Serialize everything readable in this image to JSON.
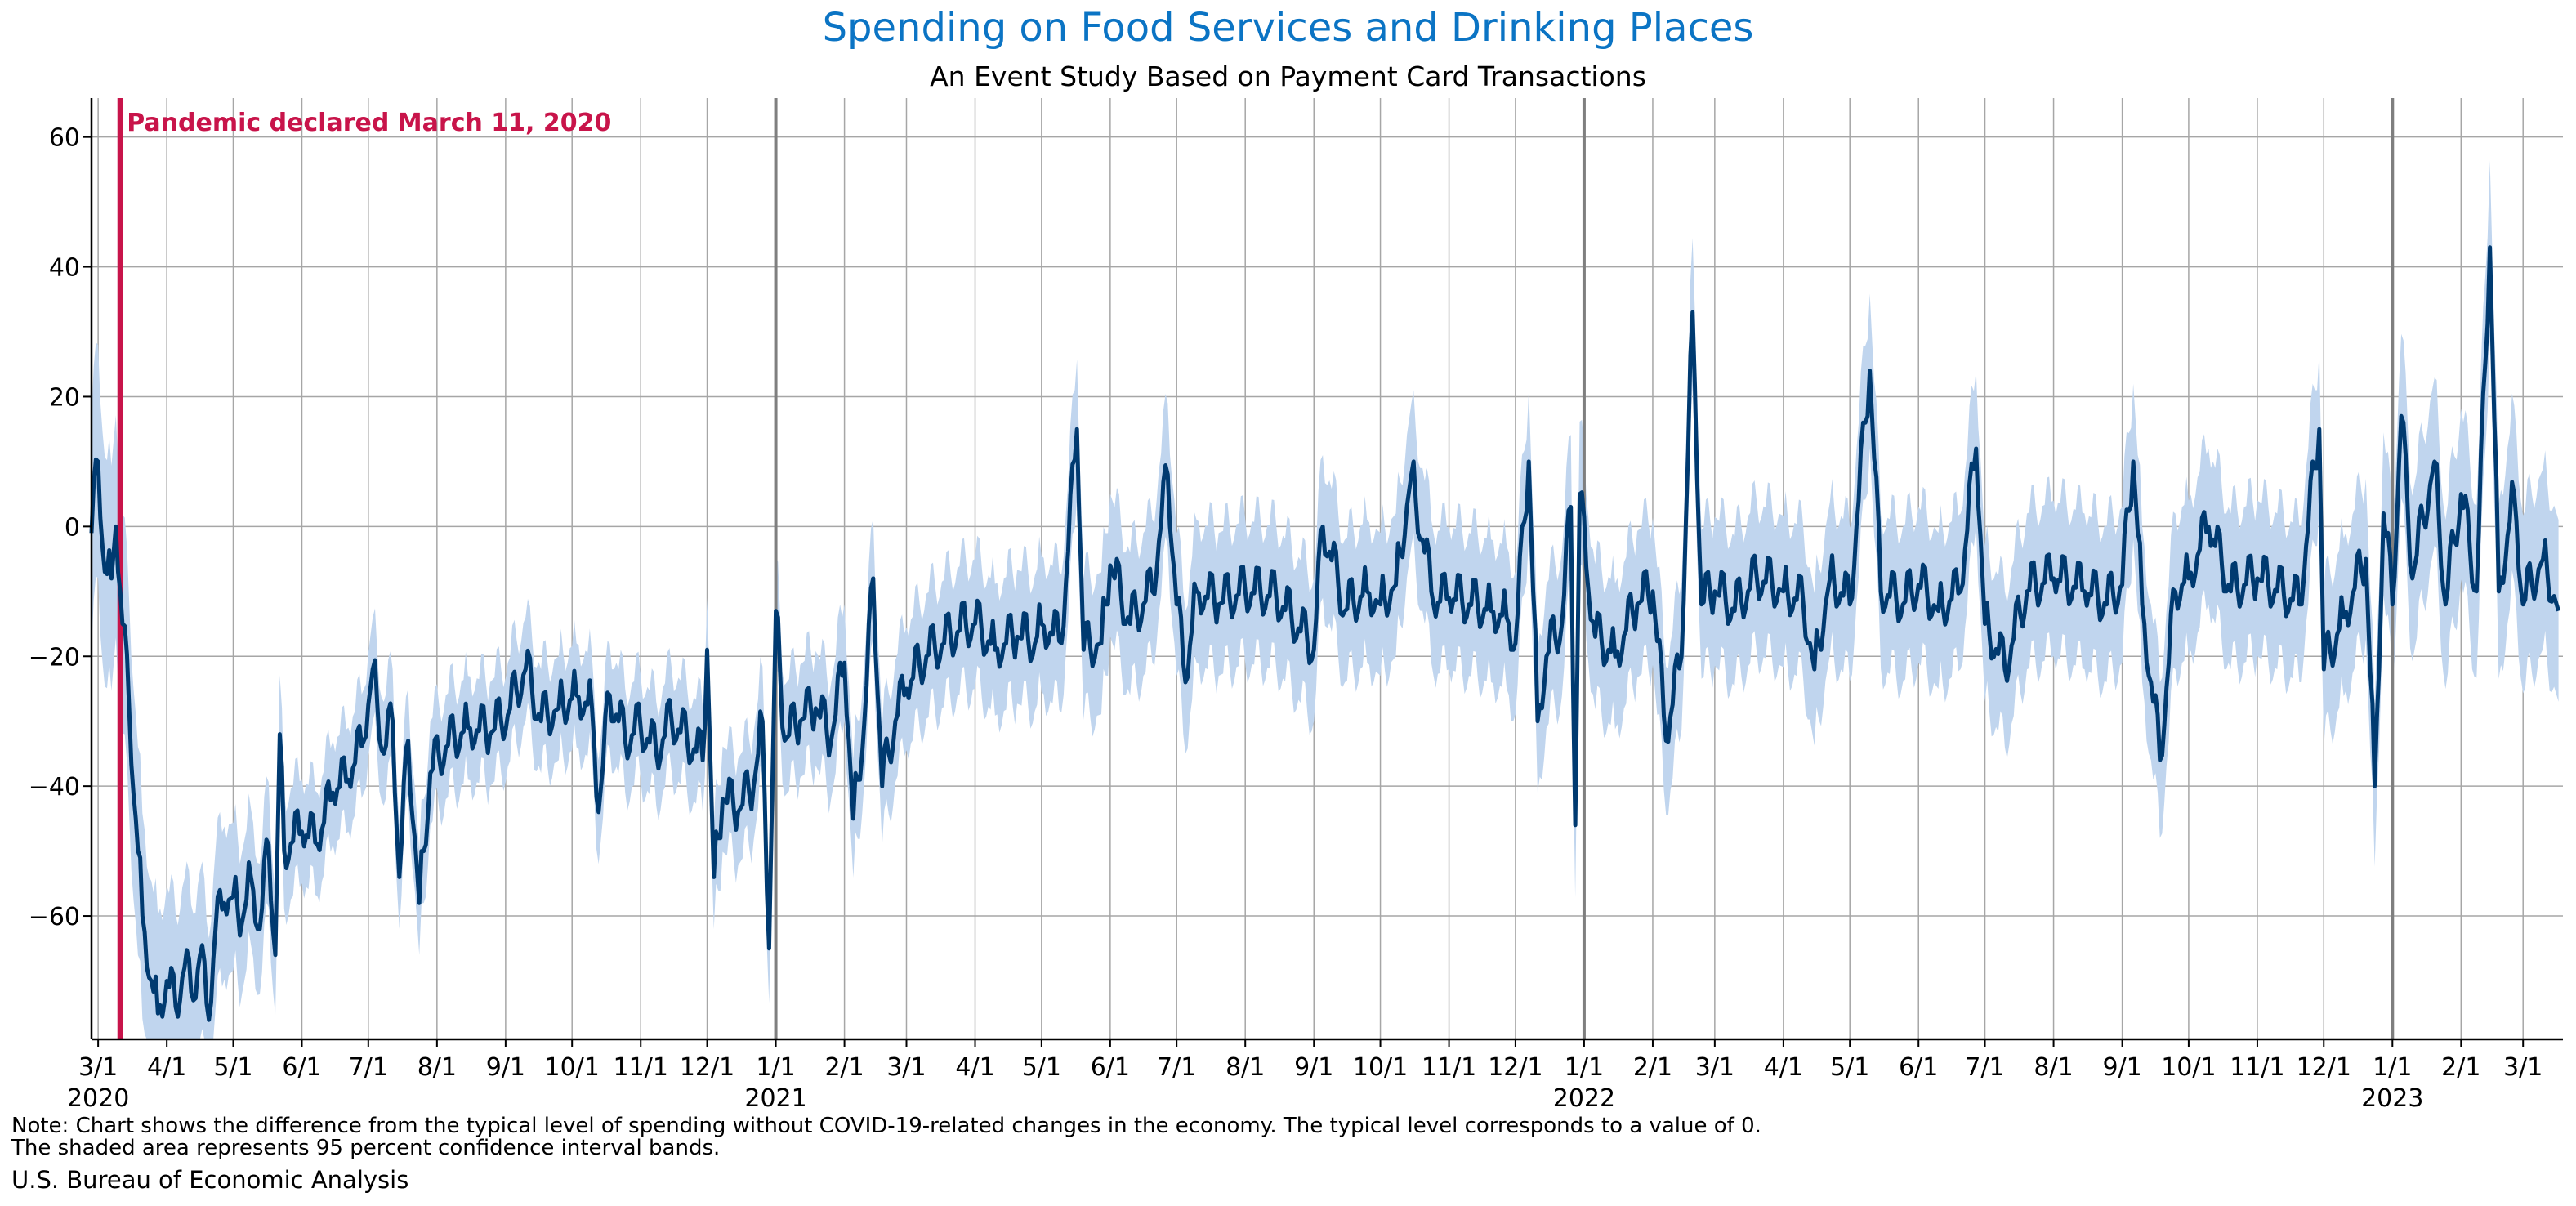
{
  "title": "Spending on Food Services and Drinking Places",
  "subtitle": "An Event Study Based on Payment Card Transactions",
  "notes": [
    "Note: Chart shows the difference from the typical level of spending without COVID-19-related changes in the economy. The typical level corresponds to a value of 0.",
    "The shaded area represents 95 percent confidence interval bands."
  ],
  "source": "U.S. Bureau of Economic Analysis",
  "colors": {
    "title": "#0b74c4",
    "line": "#003a70",
    "band": "#c0d5ee",
    "event_line": "#c8144a",
    "year_line": "#7f7f7f",
    "grid": "#a6a6a6"
  },
  "chart_data": {
    "type": "line",
    "title": "Spending on Food Services and Drinking Places",
    "subtitle": "An Event Study Based on Payment Card Transactions",
    "xlabel": "",
    "ylabel": "",
    "x_range": [
      "2020-02-27",
      "2023-03-19"
    ],
    "ylim": [
      -79,
      66
    ],
    "y_ticks": [
      -60,
      -40,
      -20,
      0,
      20,
      40,
      60
    ],
    "y_tick_labels": [
      "−60",
      "−40",
      "−20",
      "0",
      "20",
      "40",
      "60"
    ],
    "grid": true,
    "x_ticks": [
      {
        "date": "2020-03-01",
        "label": "3/1",
        "year_label": "2020"
      },
      {
        "date": "2020-04-01",
        "label": "4/1"
      },
      {
        "date": "2020-05-01",
        "label": "5/1"
      },
      {
        "date": "2020-06-01",
        "label": "6/1"
      },
      {
        "date": "2020-07-01",
        "label": "7/1"
      },
      {
        "date": "2020-08-01",
        "label": "8/1"
      },
      {
        "date": "2020-09-01",
        "label": "9/1"
      },
      {
        "date": "2020-10-01",
        "label": "10/1"
      },
      {
        "date": "2020-11-01",
        "label": "11/1"
      },
      {
        "date": "2020-12-01",
        "label": "12/1"
      },
      {
        "date": "2021-01-01",
        "label": "1/1",
        "year_label": "2021",
        "year_boundary": true
      },
      {
        "date": "2021-02-01",
        "label": "2/1"
      },
      {
        "date": "2021-03-01",
        "label": "3/1"
      },
      {
        "date": "2021-04-01",
        "label": "4/1"
      },
      {
        "date": "2021-05-01",
        "label": "5/1"
      },
      {
        "date": "2021-06-01",
        "label": "6/1"
      },
      {
        "date": "2021-07-01",
        "label": "7/1"
      },
      {
        "date": "2021-08-01",
        "label": "8/1"
      },
      {
        "date": "2021-09-01",
        "label": "9/1"
      },
      {
        "date": "2021-10-01",
        "label": "10/1"
      },
      {
        "date": "2021-11-01",
        "label": "11/1"
      },
      {
        "date": "2021-12-01",
        "label": "12/1"
      },
      {
        "date": "2022-01-01",
        "label": "1/1",
        "year_label": "2022",
        "year_boundary": true
      },
      {
        "date": "2022-02-01",
        "label": "2/1"
      },
      {
        "date": "2022-03-01",
        "label": "3/1"
      },
      {
        "date": "2022-04-01",
        "label": "4/1"
      },
      {
        "date": "2022-05-01",
        "label": "5/1"
      },
      {
        "date": "2022-06-01",
        "label": "6/1"
      },
      {
        "date": "2022-07-01",
        "label": "7/1"
      },
      {
        "date": "2022-08-01",
        "label": "8/1"
      },
      {
        "date": "2022-09-01",
        "label": "9/1"
      },
      {
        "date": "2022-10-01",
        "label": "10/1"
      },
      {
        "date": "2022-11-01",
        "label": "11/1"
      },
      {
        "date": "2022-12-01",
        "label": "12/1"
      },
      {
        "date": "2023-01-01",
        "label": "1/1",
        "year_label": "2023",
        "year_boundary": true
      },
      {
        "date": "2023-02-01",
        "label": "2/1"
      },
      {
        "date": "2023-03-01",
        "label": "3/1"
      }
    ],
    "annotation": {
      "date": "2020-03-11",
      "label": "Pandemic declared March 11, 2020"
    },
    "series": [
      {
        "values": [
          [
            "2020-02-27",
            -1
          ],
          [
            "2020-03-01",
            10
          ],
          [
            "2020-03-04",
            -7
          ],
          [
            "2020-03-07",
            -8
          ],
          [
            "2020-03-09",
            0
          ],
          [
            "2020-03-12",
            -15
          ],
          [
            "2020-03-15",
            -28
          ],
          [
            "2020-03-18",
            -45
          ],
          [
            "2020-03-21",
            -60
          ],
          [
            "2020-03-25",
            -70
          ],
          [
            "2020-03-28",
            -75
          ],
          [
            "2020-04-01",
            -70
          ],
          [
            "2020-04-05",
            -74
          ],
          [
            "2020-04-09",
            -68
          ],
          [
            "2020-04-13",
            -73
          ],
          [
            "2020-04-16",
            -66
          ],
          [
            "2020-04-20",
            -76
          ],
          [
            "2020-04-23",
            -62
          ],
          [
            "2020-04-27",
            -58
          ],
          [
            "2020-05-01",
            -57
          ],
          [
            "2020-05-05",
            -61
          ],
          [
            "2020-05-09",
            -54
          ],
          [
            "2020-05-13",
            -62
          ],
          [
            "2020-05-17",
            -49
          ],
          [
            "2020-05-20",
            -66
          ],
          [
            "2020-05-22",
            -32
          ],
          [
            "2020-05-24",
            -50
          ],
          [
            "2020-06-01",
            -47
          ],
          [
            "2020-06-08",
            -49
          ],
          [
            "2020-06-15",
            -41
          ],
          [
            "2020-06-22",
            -39
          ],
          [
            "2020-06-29",
            -33
          ],
          [
            "2020-07-03",
            -22
          ],
          [
            "2020-07-08",
            -35
          ],
          [
            "2020-07-12",
            -30
          ],
          [
            "2020-07-15",
            -54
          ],
          [
            "2020-07-19",
            -33
          ],
          [
            "2020-07-24",
            -58
          ],
          [
            "2020-07-29",
            -38
          ],
          [
            "2020-08-05",
            -34
          ],
          [
            "2020-08-15",
            -31
          ],
          [
            "2020-08-25",
            -32
          ],
          [
            "2020-09-02",
            -29
          ],
          [
            "2020-09-10",
            -22
          ],
          [
            "2020-09-17",
            -30
          ],
          [
            "2020-09-25",
            -28
          ],
          [
            "2020-10-03",
            -26
          ],
          [
            "2020-10-10",
            -28
          ],
          [
            "2020-10-13",
            -44
          ],
          [
            "2020-10-18",
            -26
          ],
          [
            "2020-10-25",
            -33
          ],
          [
            "2020-11-01",
            -31
          ],
          [
            "2020-11-08",
            -35
          ],
          [
            "2020-11-15",
            -30
          ],
          [
            "2020-11-22",
            -33
          ],
          [
            "2020-11-29",
            -36
          ],
          [
            "2020-12-01",
            -19
          ],
          [
            "2020-12-04",
            -54
          ],
          [
            "2020-12-08",
            -42
          ],
          [
            "2020-12-15",
            -44
          ],
          [
            "2020-12-22",
            -40
          ],
          [
            "2020-12-26",
            -30
          ],
          [
            "2020-12-29",
            -65
          ],
          [
            "2021-01-01",
            -13
          ],
          [
            "2021-01-05",
            -33
          ],
          [
            "2021-01-12",
            -30
          ],
          [
            "2021-01-19",
            -28
          ],
          [
            "2021-01-26",
            -33
          ],
          [
            "2021-02-01",
            -21
          ],
          [
            "2021-02-05",
            -45
          ],
          [
            "2021-02-10",
            -30
          ],
          [
            "2021-02-14",
            -8
          ],
          [
            "2021-02-18",
            -40
          ],
          [
            "2021-02-24",
            -30
          ],
          [
            "2021-03-01",
            -25
          ],
          [
            "2021-03-10",
            -20
          ],
          [
            "2021-03-18",
            -18
          ],
          [
            "2021-03-25",
            -16
          ],
          [
            "2021-04-01",
            -15
          ],
          [
            "2021-04-10",
            -19
          ],
          [
            "2021-04-20",
            -17
          ],
          [
            "2021-04-28",
            -18
          ],
          [
            "2021-05-01",
            -15
          ],
          [
            "2021-05-10",
            -18
          ],
          [
            "2021-05-17",
            15
          ],
          [
            "2021-05-20",
            -19
          ],
          [
            "2021-05-28",
            -18
          ],
          [
            "2021-06-01",
            -6
          ],
          [
            "2021-06-10",
            -15
          ],
          [
            "2021-06-20",
            -10
          ],
          [
            "2021-06-27",
            8
          ],
          [
            "2021-07-01",
            -12
          ],
          [
            "2021-07-05",
            -24
          ],
          [
            "2021-07-10",
            -10
          ],
          [
            "2021-07-20",
            -12
          ],
          [
            "2021-08-01",
            -10
          ],
          [
            "2021-08-15",
            -11
          ],
          [
            "2021-09-01",
            -19
          ],
          [
            "2021-09-05",
            0
          ],
          [
            "2021-09-15",
            -13
          ],
          [
            "2021-09-25",
            -10
          ],
          [
            "2021-10-01",
            -12
          ],
          [
            "2021-10-08",
            -9
          ],
          [
            "2021-10-15",
            8
          ],
          [
            "2021-10-25",
            -12
          ],
          [
            "2021-11-01",
            -11
          ],
          [
            "2021-11-10",
            -12
          ],
          [
            "2021-11-20",
            -13
          ],
          [
            "2021-11-27",
            -14
          ],
          [
            "2021-12-01",
            -18
          ],
          [
            "2021-12-07",
            10
          ],
          [
            "2021-12-11",
            -30
          ],
          [
            "2021-12-15",
            -20
          ],
          [
            "2021-12-22",
            -15
          ],
          [
            "2021-12-26",
            3
          ],
          [
            "2021-12-28",
            -46
          ],
          [
            "2021-12-30",
            5
          ],
          [
            "2022-01-03",
            -10
          ],
          [
            "2022-01-06",
            -17
          ],
          [
            "2022-01-15",
            -20
          ],
          [
            "2022-01-25",
            -12
          ],
          [
            "2022-02-01",
            -10
          ],
          [
            "2022-02-07",
            -33
          ],
          [
            "2022-02-14",
            -20
          ],
          [
            "2022-02-19",
            33
          ],
          [
            "2022-02-23",
            -12
          ],
          [
            "2022-03-01",
            -10
          ],
          [
            "2022-03-10",
            -13
          ],
          [
            "2022-03-20",
            -8
          ],
          [
            "2022-04-01",
            -10
          ],
          [
            "2022-04-10",
            -12
          ],
          [
            "2022-04-15",
            -22
          ],
          [
            "2022-04-22",
            -8
          ],
          [
            "2022-05-01",
            -12
          ],
          [
            "2022-05-10",
            24
          ],
          [
            "2022-05-15",
            -10
          ],
          [
            "2022-05-25",
            -12
          ],
          [
            "2022-06-01",
            -9
          ],
          [
            "2022-06-10",
            -13
          ],
          [
            "2022-06-20",
            -10
          ],
          [
            "2022-06-27",
            12
          ],
          [
            "2022-07-01",
            -15
          ],
          [
            "2022-07-10",
            -22
          ],
          [
            "2022-07-20",
            -10
          ],
          [
            "2022-08-01",
            -8
          ],
          [
            "2022-08-15",
            -10
          ],
          [
            "2022-08-25",
            -12
          ],
          [
            "2022-09-01",
            -9
          ],
          [
            "2022-09-06",
            10
          ],
          [
            "2022-09-10",
            -12
          ],
          [
            "2022-09-18",
            -36
          ],
          [
            "2022-09-25",
            -10
          ],
          [
            "2022-10-01",
            -8
          ],
          [
            "2022-10-10",
            0
          ],
          [
            "2022-10-20",
            -10
          ],
          [
            "2022-11-01",
            -8
          ],
          [
            "2022-11-10",
            -10
          ],
          [
            "2022-11-20",
            -12
          ],
          [
            "2022-11-29",
            15
          ],
          [
            "2022-12-01",
            -22
          ],
          [
            "2022-12-10",
            -14
          ],
          [
            "2022-12-20",
            -5
          ],
          [
            "2022-12-24",
            -40
          ],
          [
            "2022-12-28",
            2
          ],
          [
            "2023-01-01",
            -12
          ],
          [
            "2023-01-05",
            17
          ],
          [
            "2023-01-10",
            -8
          ],
          [
            "2023-01-20",
            10
          ],
          [
            "2023-01-25",
            -12
          ],
          [
            "2023-02-01",
            5
          ],
          [
            "2023-02-08",
            -10
          ],
          [
            "2023-02-14",
            43
          ],
          [
            "2023-02-18",
            -10
          ],
          [
            "2023-02-25",
            5
          ],
          [
            "2023-03-01",
            -12
          ],
          [
            "2023-03-10",
            -5
          ],
          [
            "2023-03-17",
            -13
          ]
        ]
      }
    ],
    "confidence_band": {
      "label": "95 percent confidence interval",
      "width": [
        [
          "2020-03-01",
          18
        ],
        [
          "2020-06-01",
          8
        ],
        [
          "2020-12-01",
          8
        ],
        [
          "2021-06-01",
          11
        ],
        [
          "2021-12-01",
          11
        ],
        [
          "2022-06-01",
          12
        ],
        [
          "2022-12-01",
          12
        ],
        [
          "2023-03-17",
          14
        ]
      ]
    }
  }
}
